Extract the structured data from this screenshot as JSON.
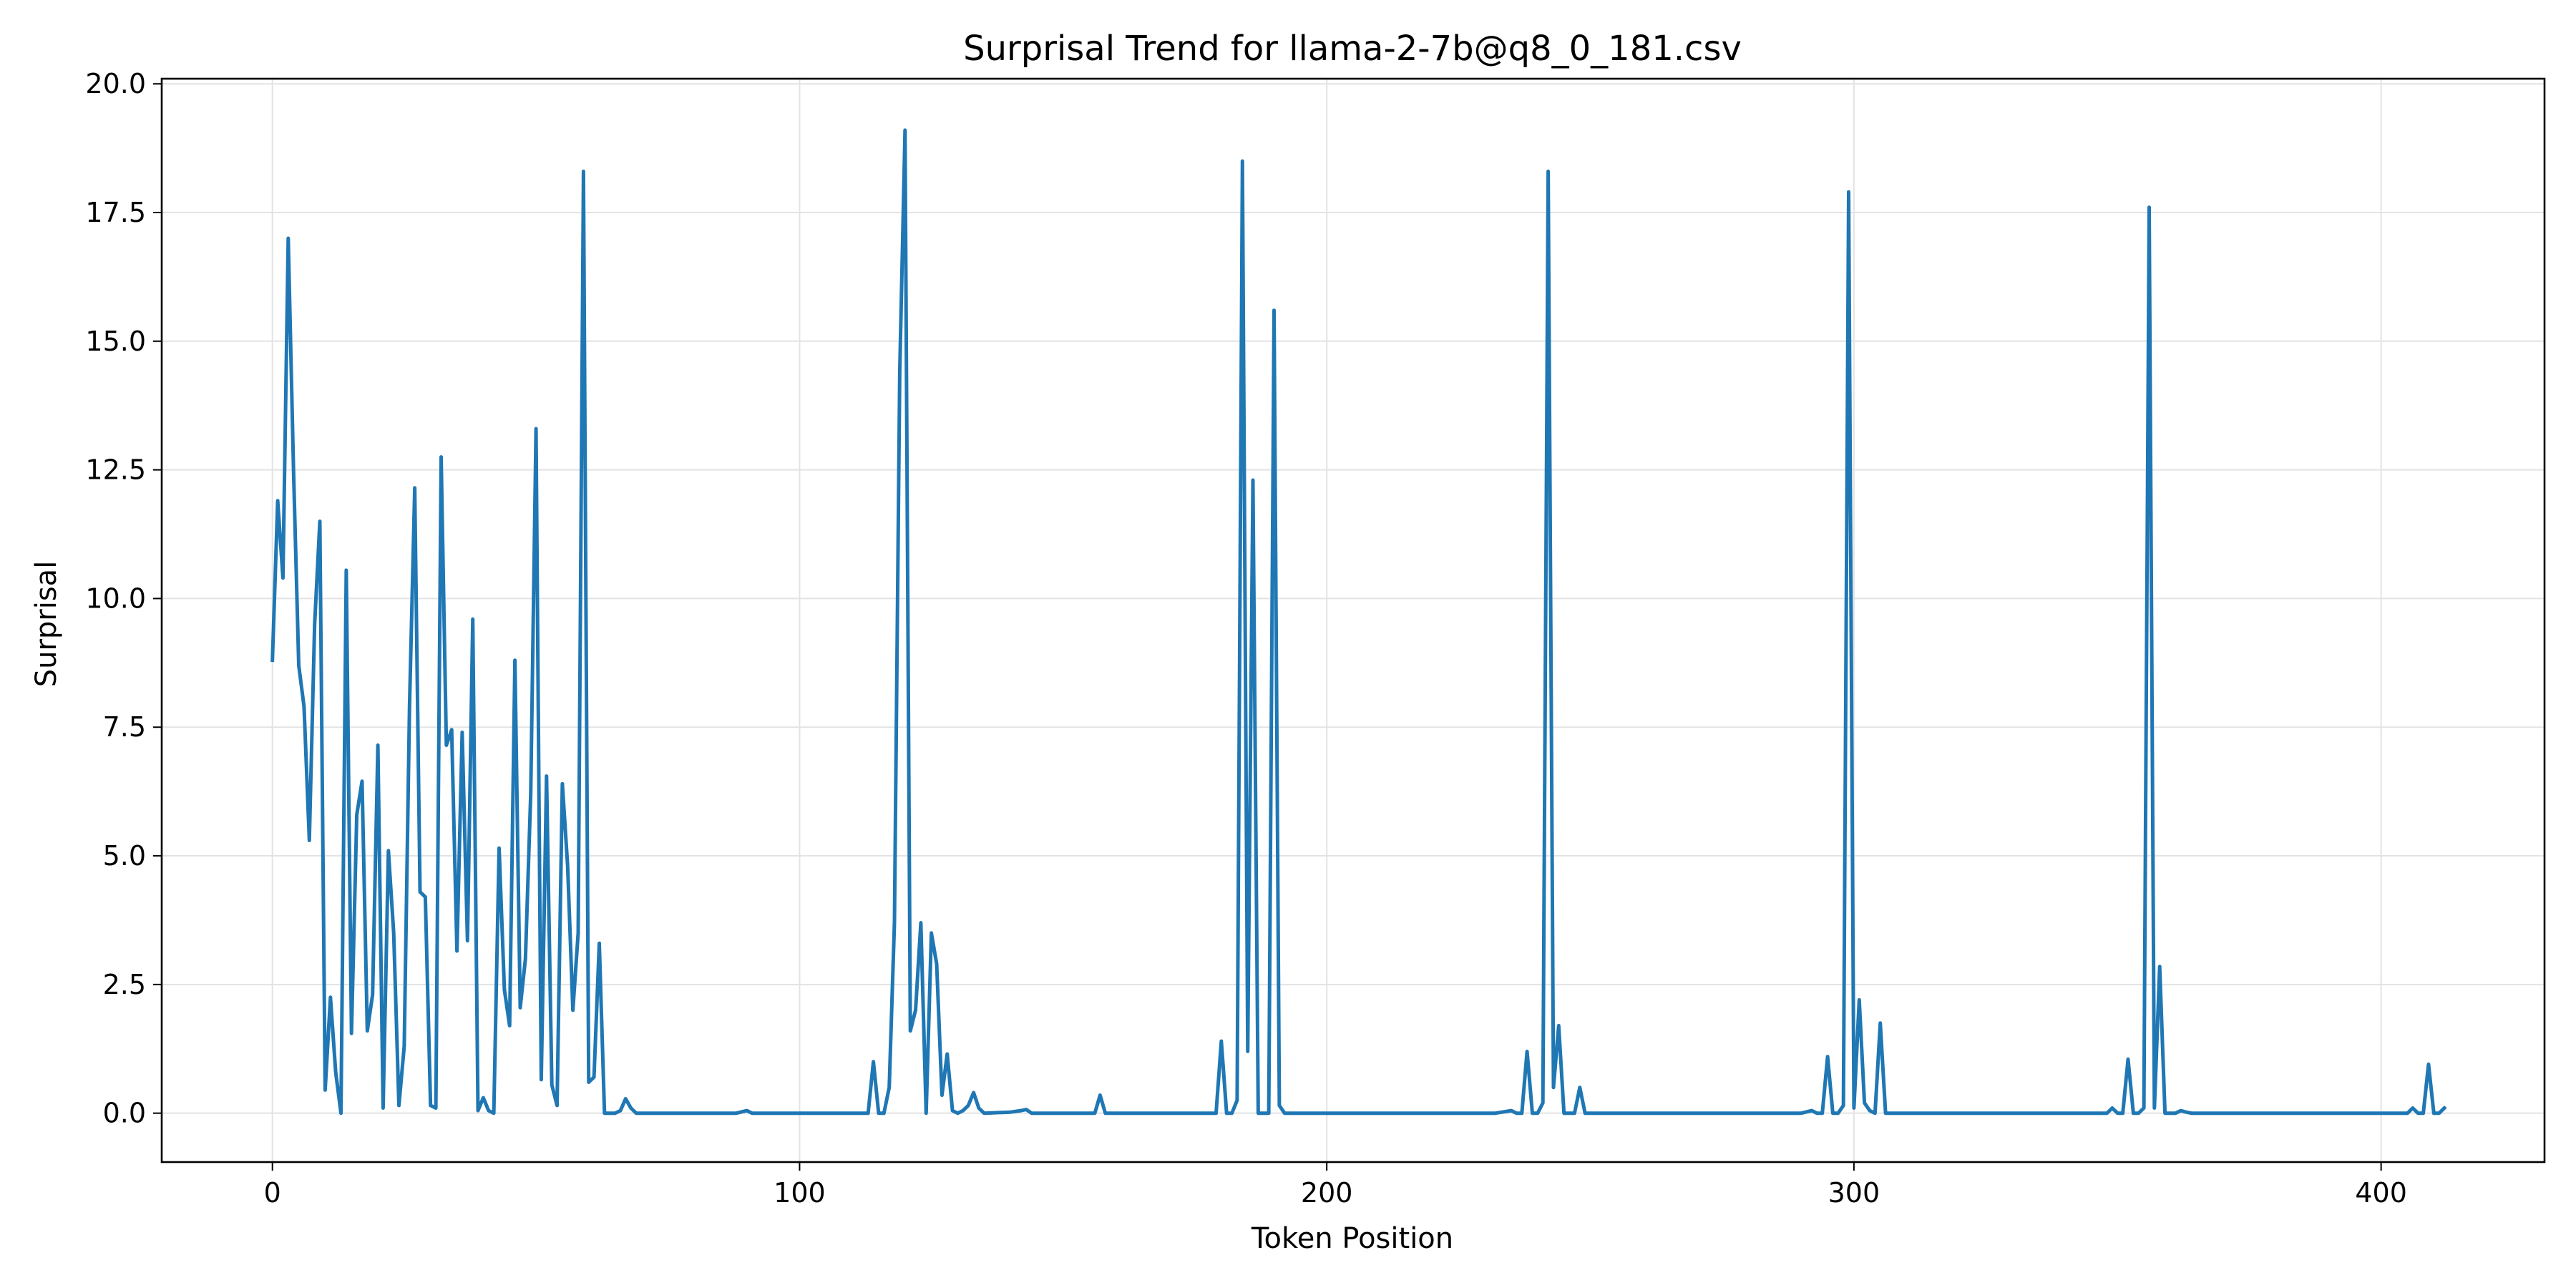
{
  "chart_data": {
    "type": "line",
    "title": "Surprisal Trend for llama-2-7b@q8_0_181.csv",
    "xlabel": "Token Position",
    "ylabel": "Surprisal",
    "xlim": [
      -21,
      431
    ],
    "ylim": [
      -0.95,
      20.1
    ],
    "x_ticks": [
      0,
      100,
      200,
      300,
      400
    ],
    "x_tick_labels": [
      "0",
      "100",
      "200",
      "300",
      "400"
    ],
    "y_ticks": [
      0,
      2.5,
      5,
      7.5,
      10,
      12.5,
      15,
      17.5,
      20
    ],
    "y_tick_labels": [
      "0.0",
      "2.5",
      "5.0",
      "7.5",
      "10.0",
      "12.5",
      "15.0",
      "17.5",
      "20.0"
    ],
    "grid": true,
    "line_color": "#1f77b4",
    "series": [
      {
        "points": [
          [
            0,
            8.8
          ],
          [
            1,
            11.9
          ],
          [
            2,
            10.4
          ],
          [
            3,
            17.0
          ],
          [
            4,
            12.5
          ],
          [
            5,
            8.7
          ],
          [
            6,
            7.9
          ],
          [
            7,
            5.3
          ],
          [
            8,
            9.5
          ],
          [
            9,
            11.5
          ],
          [
            10,
            0.45
          ],
          [
            11,
            2.25
          ],
          [
            12,
            0.8
          ],
          [
            13,
            0.0
          ],
          [
            14,
            10.55
          ],
          [
            15,
            1.55
          ],
          [
            16,
            5.8
          ],
          [
            17,
            6.45
          ],
          [
            18,
            1.6
          ],
          [
            19,
            2.3
          ],
          [
            20,
            7.15
          ],
          [
            21,
            0.1
          ],
          [
            22,
            5.1
          ],
          [
            23,
            3.5
          ],
          [
            24,
            0.15
          ],
          [
            25,
            1.3
          ],
          [
            26,
            7.9
          ],
          [
            27,
            12.15
          ],
          [
            28,
            4.3
          ],
          [
            29,
            4.2
          ],
          [
            30,
            0.15
          ],
          [
            31,
            0.1
          ],
          [
            32,
            12.75
          ],
          [
            33,
            7.15
          ],
          [
            34,
            7.45
          ],
          [
            35,
            3.15
          ],
          [
            36,
            7.4
          ],
          [
            37,
            3.35
          ],
          [
            38,
            9.6
          ],
          [
            39,
            0.05
          ],
          [
            40,
            0.3
          ],
          [
            41,
            0.05
          ],
          [
            42,
            0.0
          ],
          [
            43,
            5.15
          ],
          [
            44,
            2.4
          ],
          [
            45,
            1.7
          ],
          [
            46,
            8.8
          ],
          [
            47,
            2.05
          ],
          [
            48,
            3.0
          ],
          [
            49,
            6.2
          ],
          [
            50,
            13.3
          ],
          [
            51,
            0.65
          ],
          [
            52,
            6.55
          ],
          [
            53,
            0.55
          ],
          [
            54,
            0.15
          ],
          [
            55,
            6.4
          ],
          [
            56,
            4.8
          ],
          [
            57,
            2.0
          ],
          [
            58,
            3.5
          ],
          [
            59,
            18.3
          ],
          [
            60,
            0.6
          ],
          [
            61,
            0.7
          ],
          [
            62,
            3.3
          ],
          [
            63,
            0.0
          ],
          [
            64,
            0.0
          ],
          [
            65,
            0.0
          ],
          [
            66,
            0.05
          ],
          [
            67,
            0.28
          ],
          [
            68,
            0.1
          ],
          [
            69,
            0.0
          ],
          [
            70,
            0.0
          ],
          [
            80,
            0.0
          ],
          [
            88,
            0.0
          ],
          [
            90,
            0.05
          ],
          [
            91,
            0.0
          ],
          [
            100,
            0.0
          ],
          [
            110,
            0.0
          ],
          [
            113,
            0.0
          ],
          [
            114,
            1.0
          ],
          [
            115,
            0.0
          ],
          [
            116,
            0.0
          ],
          [
            117,
            0.5
          ],
          [
            118,
            3.7
          ],
          [
            119,
            14.4
          ],
          [
            120,
            19.1
          ],
          [
            121,
            1.6
          ],
          [
            122,
            2.0
          ],
          [
            123,
            3.7
          ],
          [
            124,
            0.0
          ],
          [
            125,
            3.5
          ],
          [
            126,
            2.9
          ],
          [
            127,
            0.35
          ],
          [
            128,
            1.15
          ],
          [
            129,
            0.05
          ],
          [
            130,
            0.0
          ],
          [
            131,
            0.05
          ],
          [
            132,
            0.15
          ],
          [
            133,
            0.4
          ],
          [
            134,
            0.1
          ],
          [
            135,
            0.0
          ],
          [
            140,
            0.02
          ],
          [
            142,
            0.05
          ],
          [
            143,
            0.07
          ],
          [
            144,
            0.0
          ],
          [
            150,
            0.0
          ],
          [
            156,
            0.0
          ],
          [
            157,
            0.35
          ],
          [
            158,
            0.0
          ],
          [
            165,
            0.0
          ],
          [
            170,
            0.0
          ],
          [
            178,
            0.0
          ],
          [
            179,
            0.0
          ],
          [
            180,
            1.4
          ],
          [
            181,
            0.0
          ],
          [
            182,
            0.0
          ],
          [
            183,
            0.25
          ],
          [
            184,
            18.5
          ],
          [
            185,
            1.2
          ],
          [
            186,
            12.3
          ],
          [
            187,
            0.0
          ],
          [
            188,
            0.0
          ],
          [
            189,
            0.0
          ],
          [
            190,
            15.6
          ],
          [
            191,
            0.15
          ],
          [
            192,
            0.0
          ],
          [
            200,
            0.0
          ],
          [
            210,
            0.0
          ],
          [
            220,
            0.0
          ],
          [
            232,
            0.0
          ],
          [
            235,
            0.05
          ],
          [
            236,
            0.0
          ],
          [
            237,
            0.0
          ],
          [
            238,
            1.2
          ],
          [
            239,
            0.0
          ],
          [
            240,
            0.0
          ],
          [
            241,
            0.2
          ],
          [
            242,
            18.3
          ],
          [
            243,
            0.5
          ],
          [
            244,
            1.7
          ],
          [
            245,
            0.0
          ],
          [
            246,
            0.0
          ],
          [
            247,
            0.0
          ],
          [
            248,
            0.5
          ],
          [
            249,
            0.0
          ],
          [
            250,
            0.0
          ],
          [
            260,
            0.0
          ],
          [
            270,
            0.0
          ],
          [
            280,
            0.0
          ],
          [
            290,
            0.0
          ],
          [
            292,
            0.05
          ],
          [
            293,
            0.0
          ],
          [
            294,
            0.0
          ],
          [
            295,
            1.1
          ],
          [
            296,
            0.0
          ],
          [
            297,
            0.0
          ],
          [
            298,
            0.15
          ],
          [
            299,
            17.9
          ],
          [
            300,
            0.1
          ],
          [
            301,
            2.2
          ],
          [
            302,
            0.2
          ],
          [
            303,
            0.05
          ],
          [
            304,
            0.0
          ],
          [
            305,
            1.75
          ],
          [
            306,
            0.0
          ],
          [
            307,
            0.0
          ],
          [
            320,
            0.0
          ],
          [
            340,
            0.0
          ],
          [
            348,
            0.0
          ],
          [
            349,
            0.1
          ],
          [
            350,
            0.0
          ],
          [
            351,
            0.0
          ],
          [
            352,
            1.05
          ],
          [
            353,
            0.0
          ],
          [
            354,
            0.0
          ],
          [
            355,
            0.1
          ],
          [
            356,
            17.6
          ],
          [
            357,
            0.1
          ],
          [
            358,
            2.85
          ],
          [
            359,
            0.0
          ],
          [
            360,
            0.0
          ],
          [
            361,
            0.0
          ],
          [
            362,
            0.05
          ],
          [
            363,
            0.02
          ],
          [
            364,
            0.0
          ],
          [
            380,
            0.0
          ],
          [
            400,
            0.0
          ],
          [
            405,
            0.0
          ],
          [
            406,
            0.1
          ],
          [
            407,
            0.0
          ],
          [
            408,
            0.0
          ],
          [
            409,
            0.95
          ],
          [
            410,
            0.0
          ],
          [
            411,
            0.0
          ],
          [
            412,
            0.1
          ]
        ]
      }
    ]
  }
}
